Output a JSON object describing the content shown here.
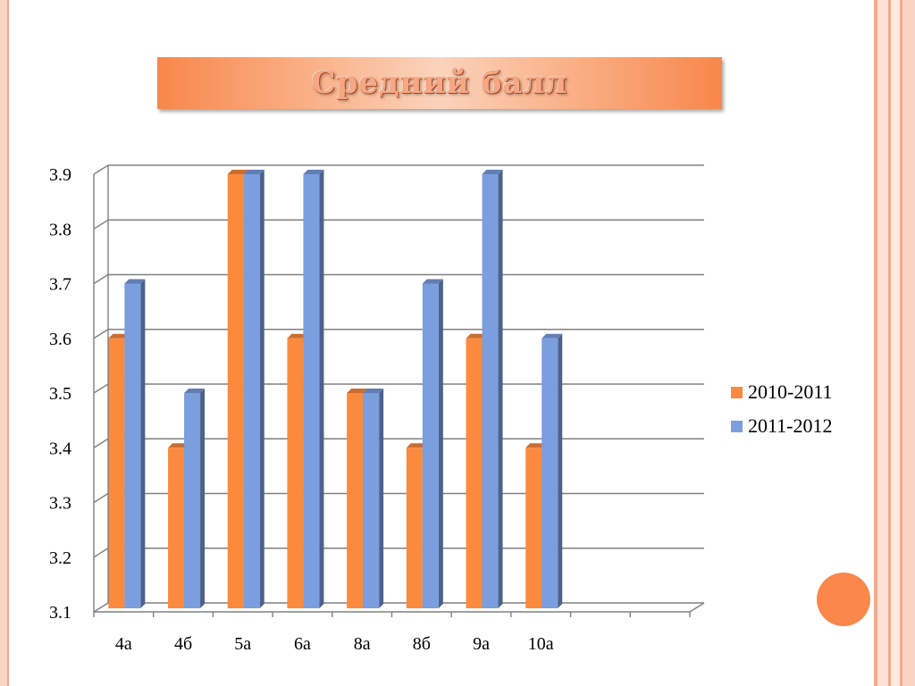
{
  "slide": {
    "title": "Средний балл",
    "colors": {
      "accent": "#fb874b",
      "series1": "#fb8a3e",
      "series2": "#7b9ede",
      "frame": "#f9d3c3"
    }
  },
  "chart_data": {
    "type": "bar",
    "title": "Средний балл",
    "xlabel": "",
    "ylabel": "",
    "categories": [
      "4а",
      "4б",
      "5а",
      "6а",
      "8а",
      "8б",
      "9а",
      "10а"
    ],
    "series": [
      {
        "name": "2010-2011",
        "color": "#fb8a3e",
        "values": [
          3.6,
          3.4,
          3.9,
          3.6,
          3.5,
          3.4,
          3.6,
          3.4
        ]
      },
      {
        "name": "2011-2012",
        "color": "#7b9ede",
        "values": [
          3.7,
          3.5,
          3.9,
          3.9,
          3.5,
          3.7,
          3.9,
          3.6
        ]
      }
    ],
    "ylim": [
      3.1,
      3.9
    ],
    "yticks": [
      "3.1",
      "3.2",
      "3.3",
      "3.4",
      "3.5",
      "3.6",
      "3.7",
      "3.8",
      "3.9"
    ],
    "grid": true,
    "legend": "right",
    "style": "3d-clustered-column"
  }
}
